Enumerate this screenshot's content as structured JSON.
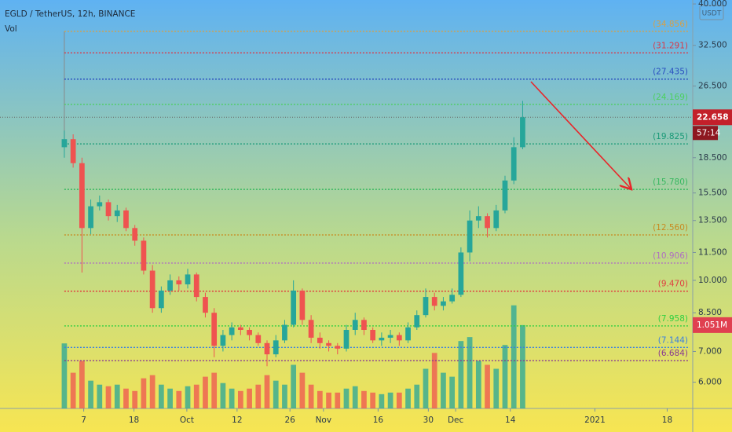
{
  "chart_data": {
    "type": "candlestick",
    "title": "EGLD / TetherUS, 12h, BINANCE",
    "volume_label": "Vol",
    "currency": "USDT",
    "countdown": "57:14",
    "log_scale": true,
    "ylim": [
      5.26,
      40.8
    ],
    "yticks": [
      {
        "value": 40,
        "label": "40.000"
      },
      {
        "value": 32.5,
        "label": "32.500"
      },
      {
        "value": 26.5,
        "label": "26.500"
      },
      {
        "value": 18.5,
        "label": "18.500"
      },
      {
        "value": 15.5,
        "label": "15.500"
      },
      {
        "value": 13.5,
        "label": "13.500"
      },
      {
        "value": 11.5,
        "label": "11.500"
      },
      {
        "value": 10,
        "label": "10.000"
      },
      {
        "value": 8.5,
        "label": "8.500"
      },
      {
        "value": 7,
        "label": "7.000"
      },
      {
        "value": 6,
        "label": "6.000"
      }
    ],
    "xlim": [
      -7.3,
      71.3
    ],
    "xticks": [
      {
        "value": 2.2,
        "label": "7"
      },
      {
        "value": 7.9,
        "label": "18"
      },
      {
        "value": 13.9,
        "label": "Oct"
      },
      {
        "value": 19.6,
        "label": "12"
      },
      {
        "value": 25.6,
        "label": "26"
      },
      {
        "value": 29.4,
        "label": "Nov"
      },
      {
        "value": 35.6,
        "label": "16"
      },
      {
        "value": 41.3,
        "label": "30"
      },
      {
        "value": 44.4,
        "label": "Dec"
      },
      {
        "value": 50.6,
        "label": "14"
      },
      {
        "value": 60.2,
        "label": "2021"
      },
      {
        "value": 68.4,
        "label": "18"
      }
    ],
    "up_color": "#26a69a",
    "down_color": "#ef5350",
    "open": [
      19.5,
      20.3,
      18,
      13,
      14.5,
      14.8,
      13.8,
      14.2,
      13.0,
      12.2,
      10.5,
      8.7,
      9.5,
      10.0,
      9.8,
      10.3,
      9.2,
      8.5,
      7.2,
      7.6,
      7.9,
      7.8,
      7.6,
      7.3,
      6.9,
      7.4,
      8.0,
      9.5,
      8.2,
      7.5,
      7.3,
      7.2,
      7.1,
      7.8,
      8.2,
      7.8,
      7.4,
      7.5,
      7.6,
      7.4,
      7.9,
      8.4,
      9.2,
      8.8,
      9.0,
      9.3,
      11.5,
      13.5,
      13.8,
      13.0,
      14.2,
      16.5,
      19.5
    ],
    "high": [
      21.2,
      20.8,
      18.5,
      15.0,
      15.3,
      15.0,
      14.6,
      14.4,
      13.2,
      12.4,
      10.8,
      9.7,
      10.3,
      10.2,
      10.6,
      10.4,
      9.4,
      8.7,
      7.8,
      8.1,
      8.0,
      7.9,
      7.7,
      7.4,
      7.6,
      8.2,
      10.0,
      9.6,
      8.4,
      7.7,
      7.4,
      7.3,
      8.0,
      8.5,
      8.3,
      7.9,
      7.7,
      7.8,
      7.7,
      8.1,
      8.6,
      9.6,
      9.4,
      9.2,
      9.6,
      11.8,
      14.2,
      14.5,
      14.0,
      14.6,
      16.9,
      20.5,
      24.6
    ],
    "low": [
      18.5,
      17.6,
      10.4,
      12.6,
      14.2,
      13.5,
      13.4,
      12.8,
      11.9,
      10.3,
      8.5,
      8.5,
      9.3,
      9.5,
      9.6,
      9.0,
      8.3,
      6.8,
      7.0,
      7.4,
      7.6,
      7.4,
      7.2,
      6.5,
      6.8,
      7.3,
      7.9,
      8.0,
      7.3,
      7.1,
      7.0,
      6.9,
      7.0,
      7.6,
      7.6,
      7.3,
      7.2,
      7.3,
      7.2,
      7.3,
      7.8,
      8.3,
      8.6,
      8.6,
      8.9,
      9.2,
      11.0,
      13.0,
      12.4,
      12.8,
      14.0,
      16.2,
      19.3
    ],
    "close": [
      20.3,
      18,
      13,
      14.5,
      14.8,
      13.8,
      14.2,
      13.0,
      12.2,
      10.5,
      8.7,
      9.5,
      10.0,
      9.8,
      10.3,
      9.2,
      8.5,
      7.2,
      7.6,
      7.9,
      7.8,
      7.6,
      7.3,
      6.9,
      7.4,
      8.0,
      9.5,
      8.2,
      7.5,
      7.3,
      7.2,
      7.1,
      7.8,
      8.2,
      7.8,
      7.4,
      7.5,
      7.6,
      7.4,
      7.9,
      8.4,
      9.2,
      8.8,
      9.0,
      9.3,
      11.5,
      13.5,
      13.8,
      13.0,
      14.2,
      16.5,
      19.5,
      22.658
    ],
    "last_price_label": "22.658",
    "volume": [
      0.82,
      0.45,
      0.6,
      0.35,
      0.3,
      0.28,
      0.3,
      0.25,
      0.22,
      0.38,
      0.42,
      0.3,
      0.25,
      0.22,
      0.28,
      0.3,
      0.4,
      0.45,
      0.32,
      0.25,
      0.22,
      0.25,
      0.3,
      0.42,
      0.35,
      0.3,
      0.55,
      0.45,
      0.3,
      0.22,
      0.2,
      0.2,
      0.25,
      0.28,
      0.22,
      0.2,
      0.18,
      0.2,
      0.2,
      0.25,
      0.3,
      0.5,
      0.7,
      0.45,
      0.4,
      0.85,
      0.9,
      0.6,
      0.55,
      0.5,
      0.8,
      1.3,
      1.051
    ],
    "last_volume_label": "1.051M",
    "vlim": [
      0,
      5.15
    ],
    "levels": [
      {
        "value": 34.856,
        "label": "(34.856)",
        "color": "#d4a04a"
      },
      {
        "value": 31.291,
        "label": "(31.291)",
        "color": "#d83a4a"
      },
      {
        "value": 27.435,
        "label": "(27.435)",
        "color": "#2a4fc0"
      },
      {
        "value": 24.169,
        "label": "(24.169)",
        "color": "#4cd060"
      },
      {
        "value": 19.825,
        "label": "(19.825)",
        "color": "#1a9a78"
      },
      {
        "value": 15.78,
        "label": "(15.780)",
        "color": "#38b860"
      },
      {
        "value": 12.56,
        "label": "(12.560)",
        "color": "#c88a20"
      },
      {
        "value": 10.906,
        "label": "(10.906)",
        "color": "#b070c0"
      },
      {
        "value": 9.47,
        "label": "(9.470)",
        "color": "#e04040"
      },
      {
        "value": 7.958,
        "label": "(7.958)",
        "color": "#30d040"
      },
      {
        "value": 7.144,
        "label": "(7.144)",
        "color": "#3a80e0"
      },
      {
        "value": 6.684,
        "label": "(6.684)",
        "color": "#8a3a90"
      }
    ]
  }
}
